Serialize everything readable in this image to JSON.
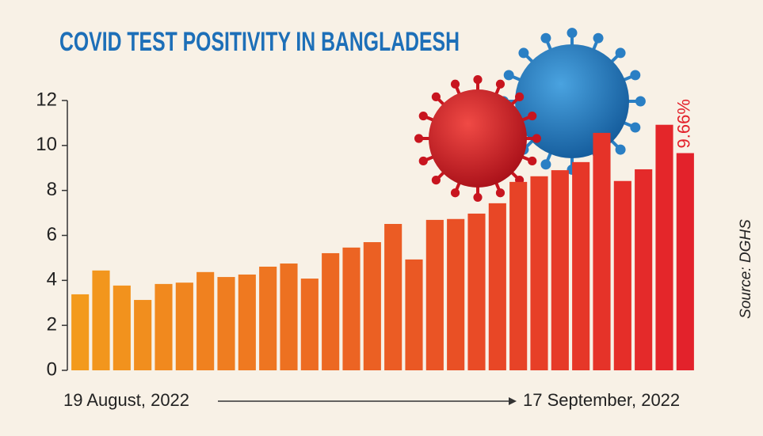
{
  "chart_data": {
    "type": "bar",
    "title": "COVID TEST POSITIVITY IN BANGLADESH",
    "source": "Source: DGHS",
    "categories": [
      "19 August, 2022",
      null,
      null,
      null,
      null,
      null,
      null,
      null,
      null,
      null,
      null,
      null,
      null,
      null,
      null,
      null,
      null,
      null,
      null,
      null,
      null,
      null,
      null,
      null,
      null,
      null,
      null,
      null,
      null,
      "17 September, 2022"
    ],
    "values": [
      3.38,
      4.44,
      3.77,
      3.13,
      3.84,
      3.9,
      4.37,
      4.15,
      4.26,
      4.61,
      4.75,
      4.08,
      5.21,
      5.46,
      5.7,
      6.51,
      4.93,
      6.69,
      6.73,
      6.97,
      7.43,
      8.38,
      8.63,
      8.9,
      9.26,
      10.56,
      8.42,
      8.94,
      10.92,
      9.66
    ],
    "value_labels": [
      null,
      null,
      null,
      null,
      null,
      null,
      null,
      null,
      null,
      null,
      null,
      null,
      null,
      null,
      null,
      null,
      null,
      null,
      null,
      null,
      null,
      null,
      null,
      null,
      null,
      null,
      null,
      null,
      null,
      "9.66%"
    ],
    "color_start": "#f39a1c",
    "color_end": "#e3222b",
    "ylim": [
      0,
      12
    ],
    "yticks": [
      0,
      2,
      4,
      6,
      8,
      10,
      12
    ],
    "grid": false
  }
}
